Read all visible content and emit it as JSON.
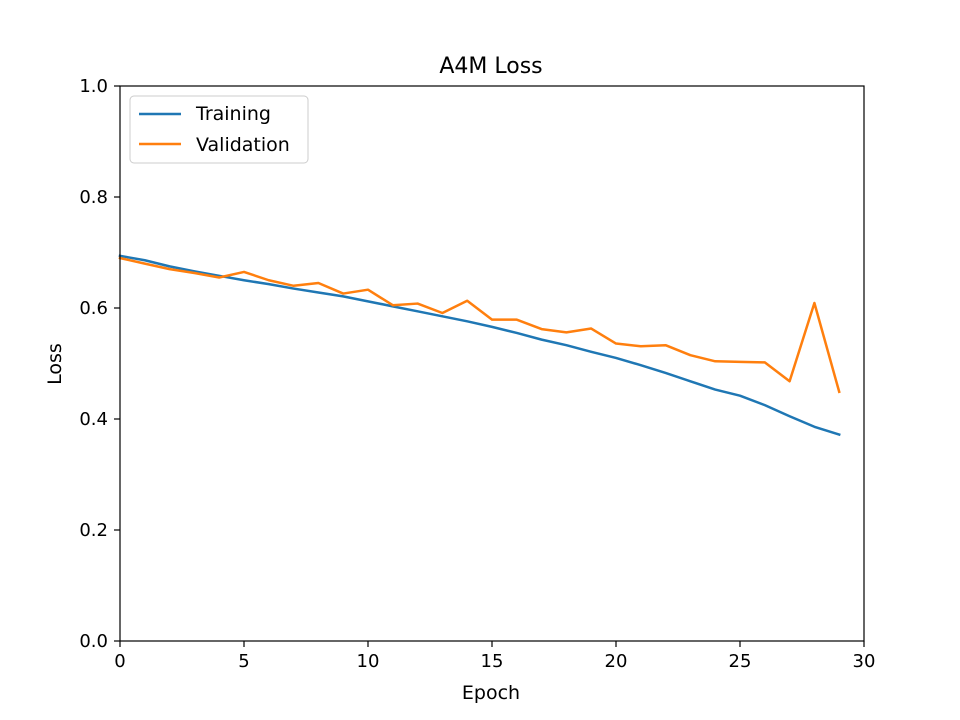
{
  "chart_data": {
    "type": "line",
    "title": "A4M Loss",
    "xlabel": "Epoch",
    "ylabel": "Loss",
    "xlim": [
      0,
      30
    ],
    "ylim": [
      0,
      1.0
    ],
    "xticks": [
      0,
      5,
      10,
      15,
      20,
      25,
      30
    ],
    "xtick_labels": [
      "0",
      "5",
      "10",
      "15",
      "20",
      "25",
      "30"
    ],
    "yticks": [
      0,
      0.2,
      0.4,
      0.6,
      0.8,
      1.0
    ],
    "ytick_labels": [
      "0.0",
      "0.2",
      "0.4",
      "0.6",
      "0.8",
      "1.0"
    ],
    "grid": false,
    "legend_position": "top-left",
    "x": [
      0,
      1,
      2,
      3,
      4,
      5,
      6,
      7,
      8,
      9,
      10,
      11,
      12,
      13,
      14,
      15,
      16,
      17,
      18,
      19,
      20,
      21,
      22,
      23,
      24,
      25,
      26,
      27,
      28,
      29
    ],
    "series": [
      {
        "name": "Training",
        "color": "#1f77b4",
        "values": [
          0.694,
          0.686,
          0.675,
          0.666,
          0.658,
          0.65,
          0.643,
          0.635,
          0.628,
          0.621,
          0.612,
          0.603,
          0.594,
          0.585,
          0.576,
          0.566,
          0.555,
          0.543,
          0.533,
          0.521,
          0.51,
          0.497,
          0.483,
          0.468,
          0.453,
          0.442,
          0.425,
          0.405,
          0.386,
          0.372
        ]
      },
      {
        "name": "Validation",
        "color": "#ff7f0e",
        "values": [
          0.69,
          0.68,
          0.67,
          0.663,
          0.655,
          0.665,
          0.65,
          0.64,
          0.645,
          0.626,
          0.633,
          0.605,
          0.608,
          0.591,
          0.613,
          0.579,
          0.579,
          0.562,
          0.556,
          0.563,
          0.536,
          0.531,
          0.533,
          0.515,
          0.504,
          0.503,
          0.502,
          0.468,
          0.609,
          0.449
        ]
      }
    ]
  }
}
